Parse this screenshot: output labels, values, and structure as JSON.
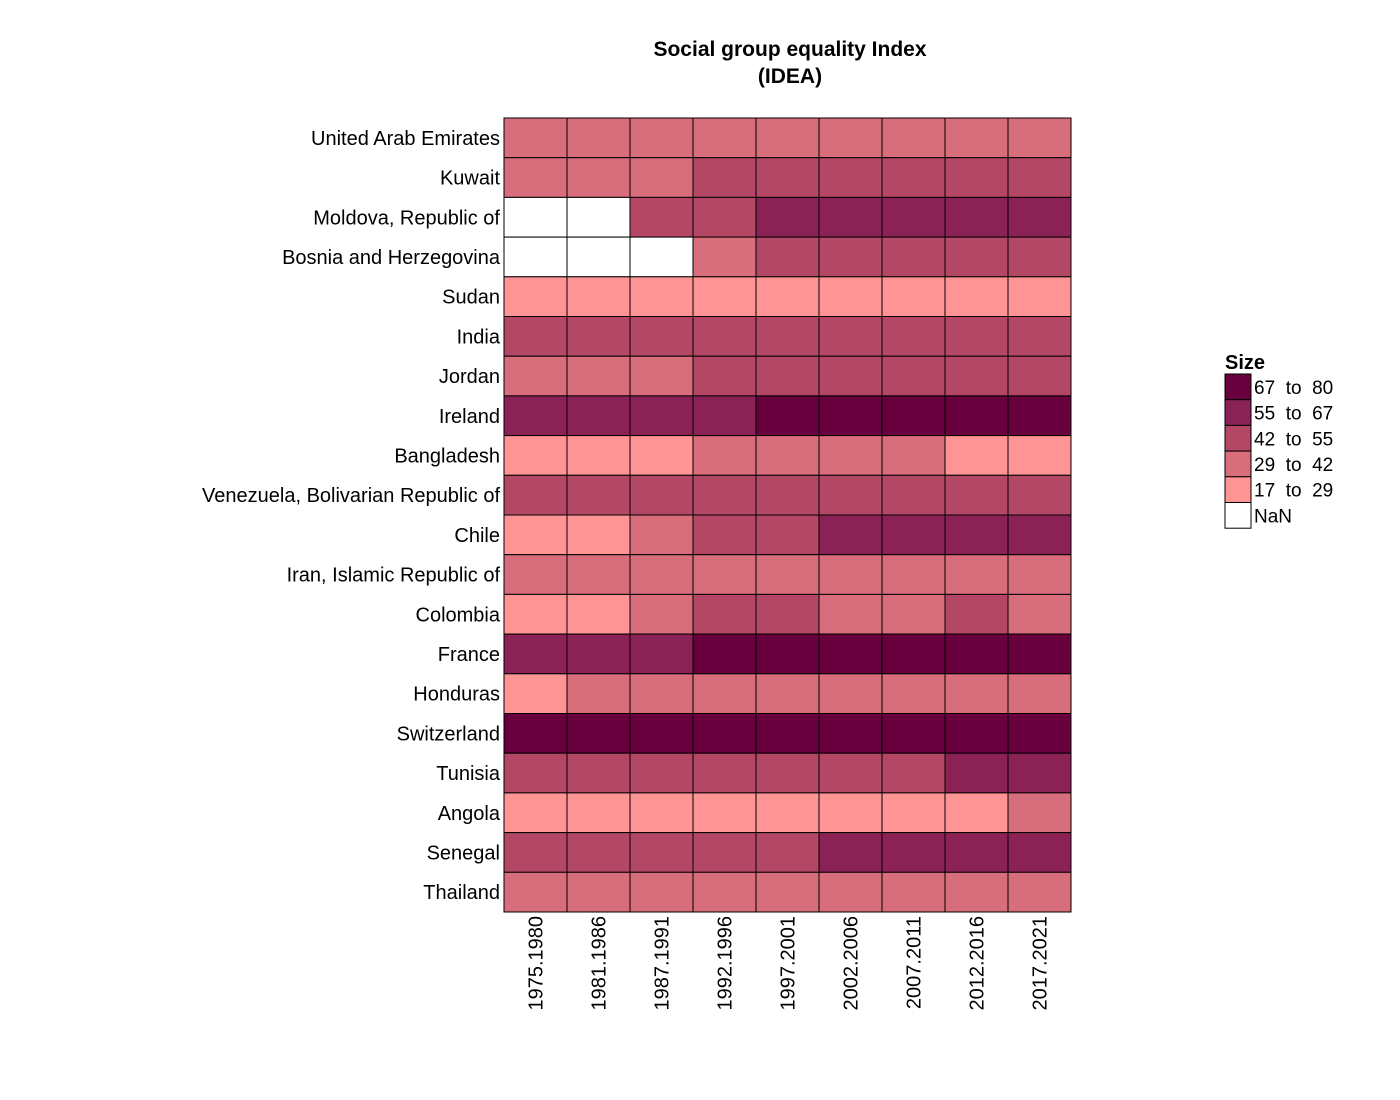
{
  "chart_data": {
    "type": "heatmap",
    "title_lines": [
      "Social group equality Index",
      "(IDEA)"
    ],
    "x_categories": [
      "1975.1980",
      "1981.1986",
      "1987.1991",
      "1992.1996",
      "1997.2001",
      "2002.2006",
      "2007.2011",
      "2012.2016",
      "2017.2021"
    ],
    "y_categories": [
      "United Arab Emirates",
      "Kuwait",
      "Moldova, Republic of",
      "Bosnia and Herzegovina",
      "Sudan",
      "India",
      "Jordan",
      "Ireland",
      "Bangladesh",
      "Venezuela, Bolivarian Republic of",
      "Chile",
      "Iran, Islamic Republic of",
      "Colombia",
      "France",
      "Honduras",
      "Switzerland",
      "Tunisia",
      "Angola",
      "Senegal",
      "Thailand"
    ],
    "bins": [
      {
        "label": "67  to  80",
        "min": 67,
        "max": 80,
        "color": "#67003d"
      },
      {
        "label": "55  to  67",
        "min": 55,
        "max": 67,
        "color": "#8b2255"
      },
      {
        "label": "42  to  55",
        "min": 42,
        "max": 55,
        "color": "#b34765"
      },
      {
        "label": "29  to  42",
        "min": 29,
        "max": 42,
        "color": "#d86d7c"
      },
      {
        "label": "17  to  29",
        "min": 17,
        "max": 29,
        "color": "#ff9494"
      },
      {
        "label": "NaN",
        "min": null,
        "max": null,
        "color": "#ffffff"
      }
    ],
    "values": [
      [
        36,
        37,
        37,
        37,
        37,
        37,
        37,
        37,
        37
      ],
      [
        36,
        37,
        38,
        48,
        49,
        49,
        49,
        48,
        48
      ],
      [
        null,
        null,
        48,
        50,
        60,
        61,
        61,
        60,
        60
      ],
      [
        null,
        null,
        null,
        38,
        48,
        49,
        49,
        48,
        48
      ],
      [
        23,
        23,
        23,
        23,
        23,
        23,
        23,
        23,
        23
      ],
      [
        48,
        48,
        48,
        48,
        48,
        48,
        48,
        48,
        48
      ],
      [
        36,
        37,
        38,
        48,
        49,
        49,
        49,
        48,
        48
      ],
      [
        60,
        61,
        61,
        62,
        70,
        72,
        72,
        72,
        72
      ],
      [
        24,
        24,
        24,
        37,
        37,
        38,
        38,
        24,
        24
      ],
      [
        48,
        48,
        48,
        48,
        48,
        48,
        48,
        48,
        48
      ],
      [
        24,
        24,
        37,
        48,
        48,
        60,
        60,
        60,
        60
      ],
      [
        36,
        37,
        37,
        37,
        37,
        37,
        37,
        37,
        37
      ],
      [
        24,
        24,
        37,
        48,
        48,
        37,
        37,
        48,
        37
      ],
      [
        60,
        61,
        61,
        72,
        72,
        72,
        72,
        72,
        72
      ],
      [
        24,
        37,
        37,
        37,
        37,
        37,
        37,
        37,
        37
      ],
      [
        72,
        72,
        72,
        72,
        72,
        72,
        72,
        72,
        72
      ],
      [
        48,
        48,
        48,
        48,
        48,
        48,
        48,
        60,
        60
      ],
      [
        24,
        24,
        24,
        24,
        24,
        24,
        24,
        24,
        37
      ],
      [
        48,
        48,
        48,
        48,
        48,
        60,
        60,
        60,
        60
      ],
      [
        37,
        37,
        37,
        37,
        37,
        37,
        37,
        37,
        37
      ]
    ],
    "legend": {
      "title": "Size",
      "placement": "right"
    }
  }
}
